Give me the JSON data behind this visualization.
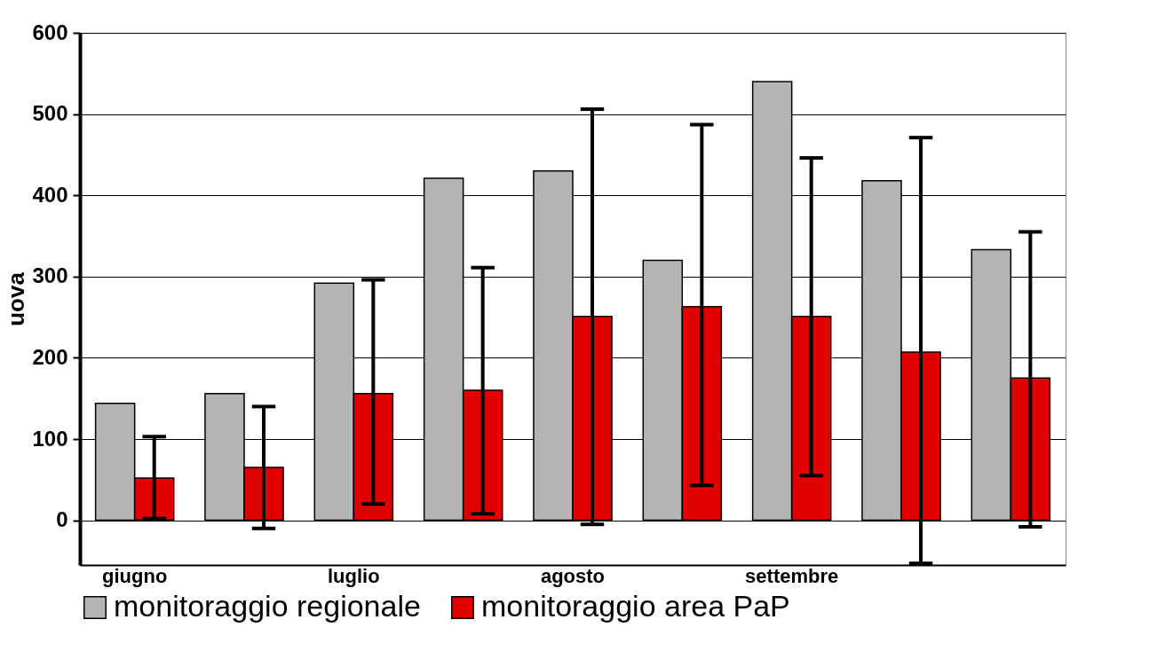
{
  "chart_data": {
    "type": "bar",
    "ylabel": "uova",
    "categories": [
      "giugno",
      null,
      "luglio",
      null,
      "agosto",
      null,
      "settembre",
      null,
      null
    ],
    "series": [
      {
        "name": "monitoraggio regionale",
        "color": "#b4b4b4",
        "values": [
          144,
          156,
          292,
          421,
          430,
          320,
          540,
          418,
          333
        ]
      },
      {
        "name": "monitoraggio area PaP",
        "color": "#e00000",
        "values": [
          52,
          65,
          156,
          160,
          251,
          263,
          251,
          207,
          175
        ],
        "errors": [
          [
            2,
            103
          ],
          [
            -10,
            140
          ],
          [
            20,
            296
          ],
          [
            8,
            311
          ],
          [
            -5,
            506
          ],
          [
            43,
            487
          ],
          [
            55,
            446
          ],
          [
            -53,
            471
          ],
          [
            -8,
            355
          ]
        ]
      }
    ],
    "ylim": [
      -55,
      600
    ],
    "yticks": [
      0,
      100,
      200,
      300,
      400,
      500,
      600
    ],
    "grid": "y",
    "legend": "bottom"
  }
}
